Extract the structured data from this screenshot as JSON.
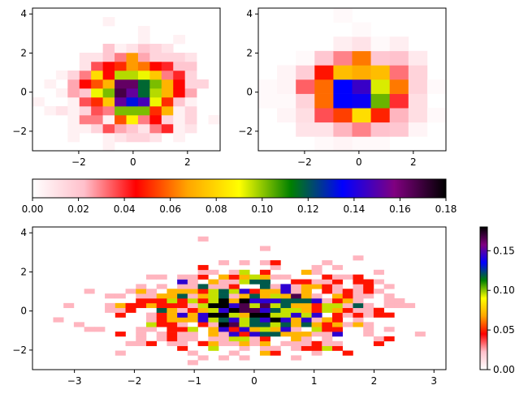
{
  "chart_data": [
    {
      "type": "heatmap",
      "title": "",
      "xlabel": "",
      "ylabel": "",
      "xlim": [
        -3.7,
        3.2
      ],
      "ylim": [
        -3.0,
        4.3
      ],
      "x_ticks": [
        "-2",
        "0",
        "2"
      ],
      "y_ticks": [
        "-2",
        "0",
        "2",
        "4"
      ],
      "bins": [
        16,
        16
      ],
      "color_range": [
        0,
        0.18
      ],
      "colormap": "gist_ncar_r-like: white, pink, red, orange, yellow, green, blue, purple, black"
    },
    {
      "type": "heatmap",
      "title": "",
      "xlabel": "",
      "ylabel": "",
      "xlim": [
        -3.7,
        3.2
      ],
      "ylim": [
        -3.0,
        4.3
      ],
      "x_ticks": [
        "-2",
        "0",
        "2"
      ],
      "y_ticks": [
        "-2",
        "0",
        "2",
        "4"
      ],
      "bins": [
        10,
        10
      ],
      "color_range": [
        0,
        0.18
      ]
    },
    {
      "type": "heatmap",
      "title": "",
      "xlabel": "",
      "ylabel": "",
      "xlim": [
        -3.7,
        3.2
      ],
      "ylim": [
        -3.0,
        4.3
      ],
      "x_ticks": [
        "-3",
        "-2",
        "-1",
        "0",
        "1",
        "2",
        "3"
      ],
      "y_ticks": [
        "-2",
        "0",
        "2",
        "4"
      ],
      "bins": [
        40,
        30
      ],
      "color_range": [
        0,
        0.18
      ]
    }
  ],
  "colorbar_horizontal": {
    "ticks": [
      "0.00",
      "0.02",
      "0.04",
      "0.06",
      "0.08",
      "0.10",
      "0.12",
      "0.14",
      "0.16",
      "0.18"
    ],
    "tick_values": [
      0,
      0.02,
      0.04,
      0.06,
      0.08,
      0.1,
      0.12,
      0.14,
      0.16,
      0.18
    ],
    "range": [
      0,
      0.18
    ]
  },
  "colorbar_vertical": {
    "ticks": [
      "0.00",
      "0.05",
      "0.10",
      "0.15"
    ],
    "tick_values": [
      0,
      0.05,
      0.1,
      0.15
    ],
    "range": [
      0,
      0.18
    ]
  },
  "colors": {
    "stops": [
      "#ffffff",
      "#ffc0cb",
      "#ff0000",
      "#ffa500",
      "#ffff00",
      "#008000",
      "#0000ff",
      "#800080",
      "#000000"
    ]
  }
}
